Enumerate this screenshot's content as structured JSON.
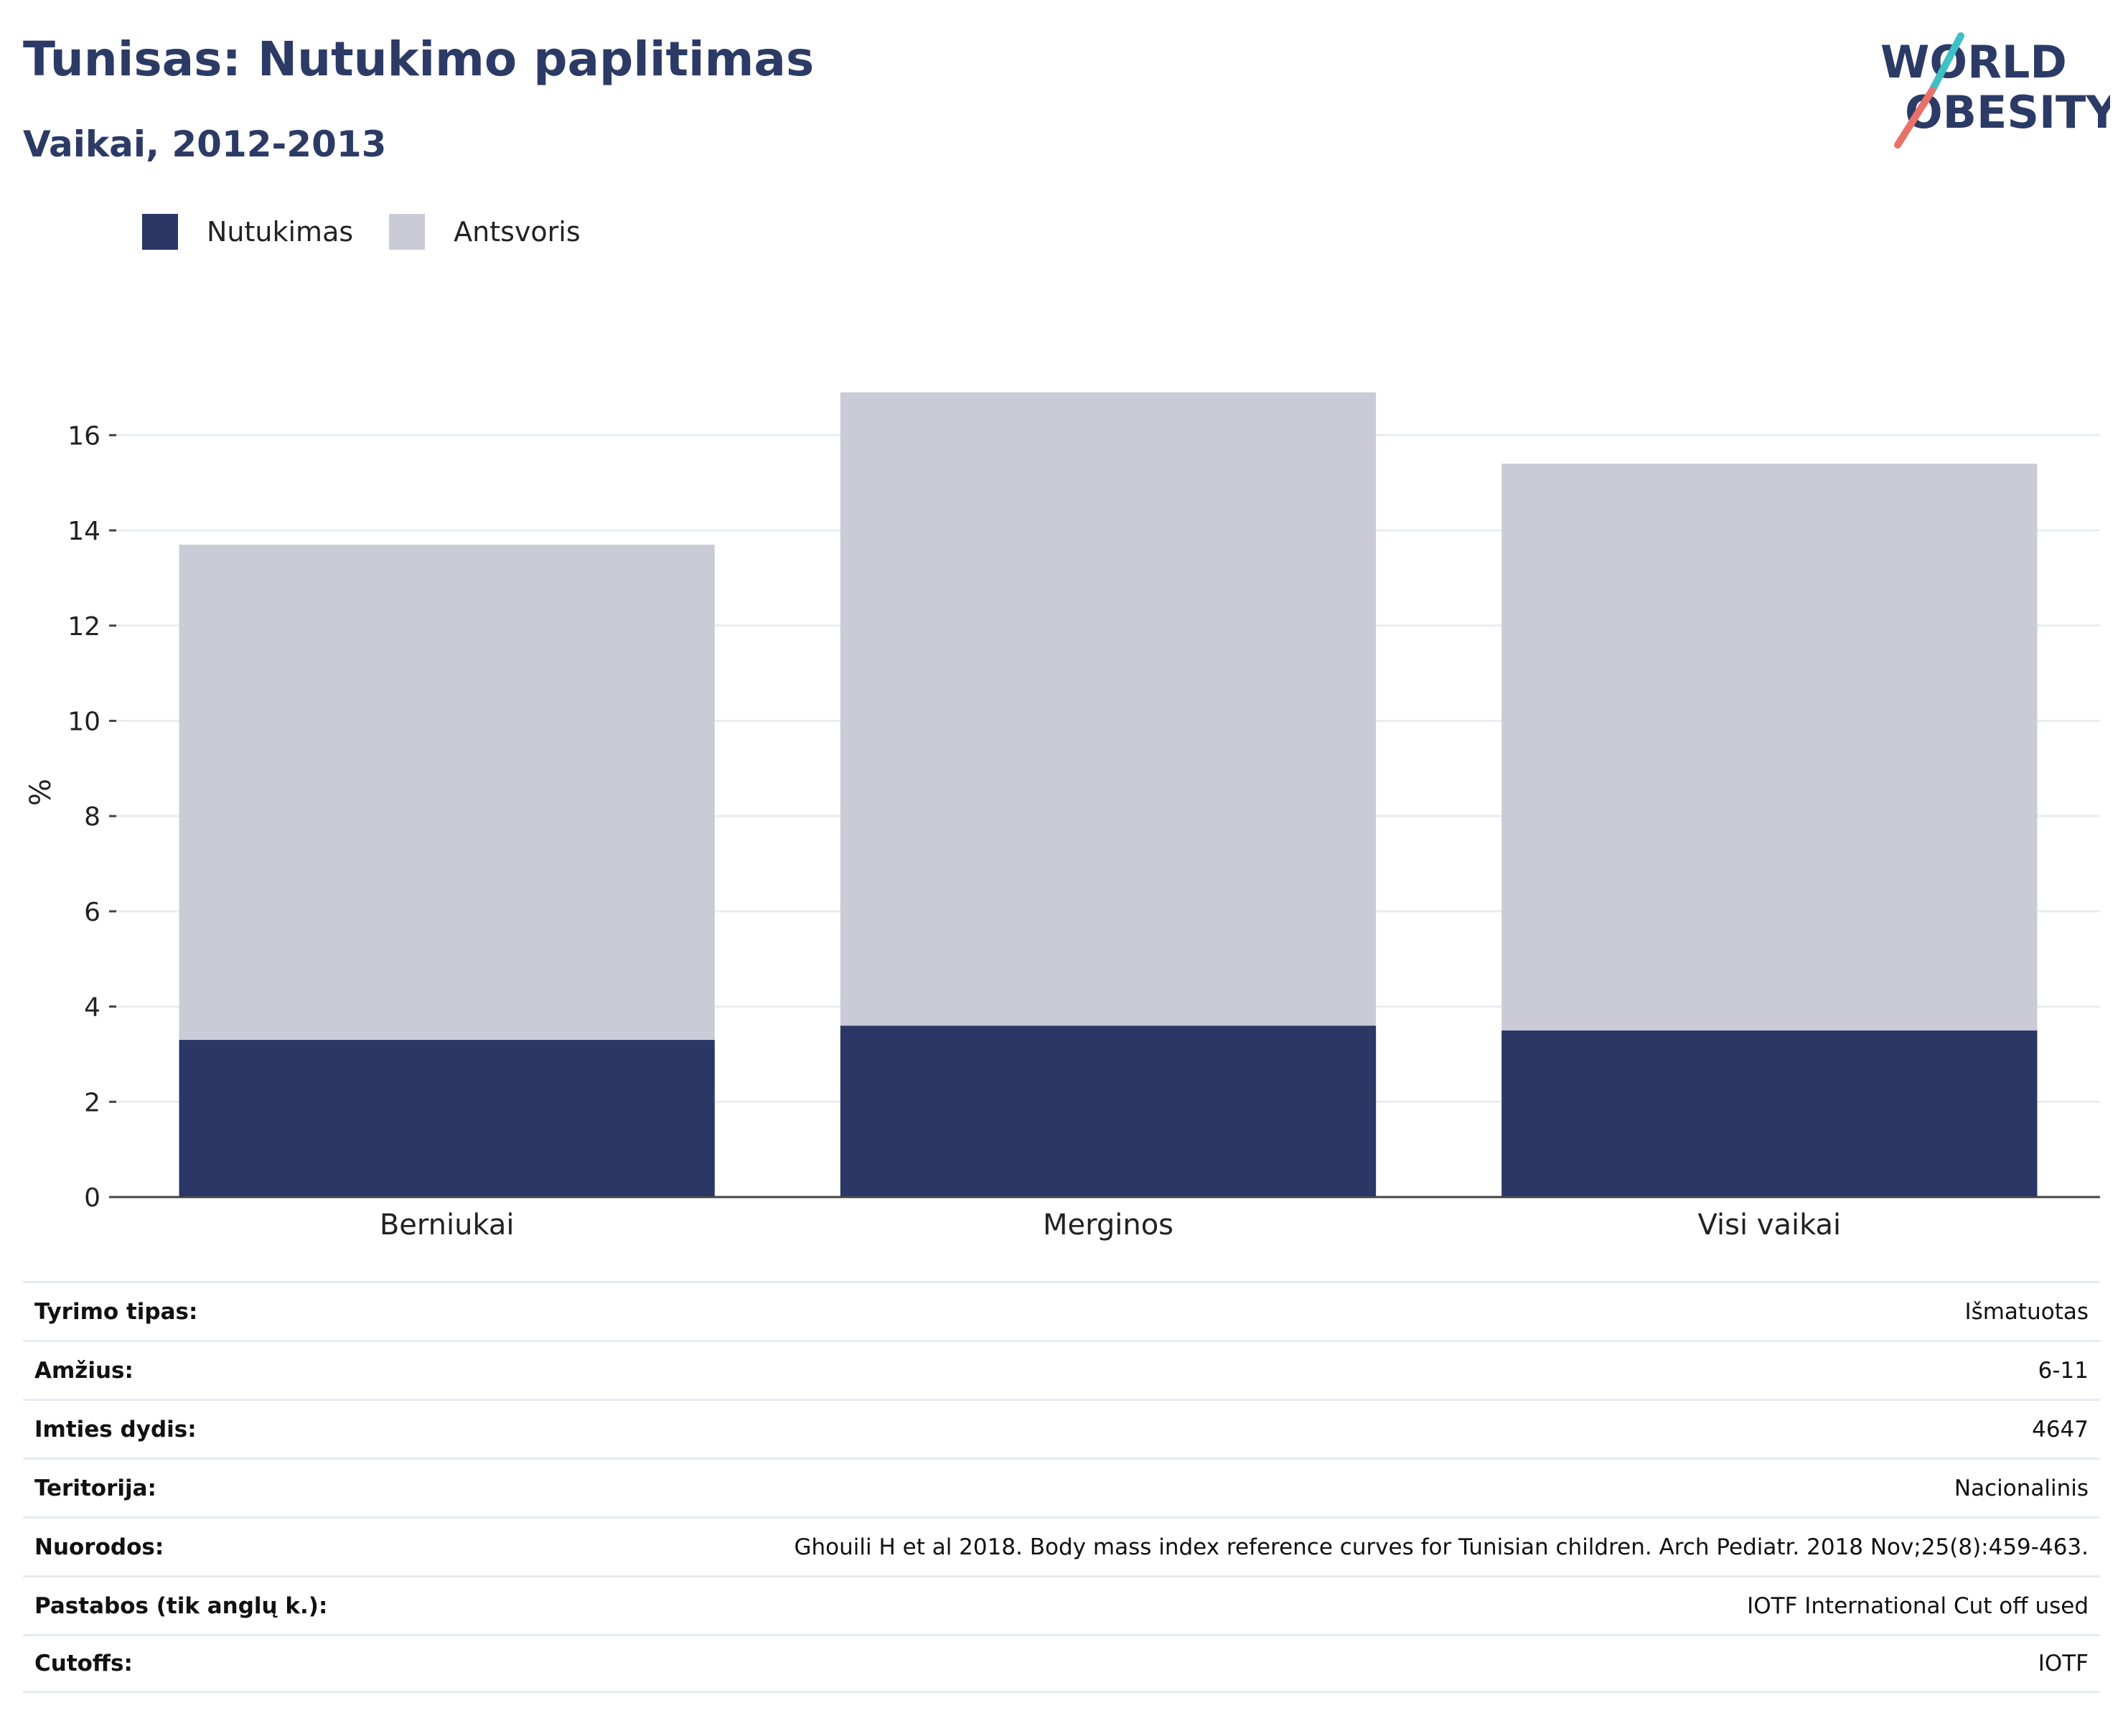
{
  "title": "Tunisas: Nutukimo paplitimas",
  "subtitle": "Vaikai, 2012-2013",
  "logo": {
    "line1": "WORLD",
    "line2": "OBESITY"
  },
  "colors": {
    "obesity": "#2b3765",
    "overweight": "#cacbd7",
    "title": "#2c3a66",
    "accent_teal": "#3ec0c4",
    "accent_red": "#e8726a"
  },
  "legend": [
    {
      "label": "Nutukimas",
      "color": "#2b3765"
    },
    {
      "label": "Antsvoris",
      "color": "#cacbd7"
    }
  ],
  "chart_data": {
    "type": "bar",
    "stacked": true,
    "categories": [
      "Berniukai",
      "Merginos",
      "Visi vaikai"
    ],
    "series": [
      {
        "name": "Nutukimas",
        "values": [
          3.3,
          3.6,
          3.5
        ]
      },
      {
        "name": "Antsvoris",
        "values": [
          10.4,
          13.3,
          11.9
        ]
      }
    ],
    "ylabel": "%",
    "ylim": [
      0,
      17
    ],
    "yticks": [
      0,
      2,
      4,
      6,
      8,
      10,
      12,
      14,
      16
    ],
    "grid": true,
    "legend_position": "top-left"
  },
  "info": [
    {
      "label": "Tyrimo tipas:",
      "value": "Išmatuotas"
    },
    {
      "label": "Amžius:",
      "value": "6-11"
    },
    {
      "label": "Imties dydis:",
      "value": "4647"
    },
    {
      "label": "Teritorija:",
      "value": "Nacionalinis"
    },
    {
      "label": "Nuorodos:",
      "value": "Ghouili H et al 2018. Body mass index reference curves for Tunisian children. Arch Pediatr. 2018 Nov;25(8):459-463."
    },
    {
      "label": "Pastabos (tik anglų k.):",
      "value": "IOTF International Cut off used"
    },
    {
      "label": "Cutoffs:",
      "value": "IOTF"
    }
  ]
}
